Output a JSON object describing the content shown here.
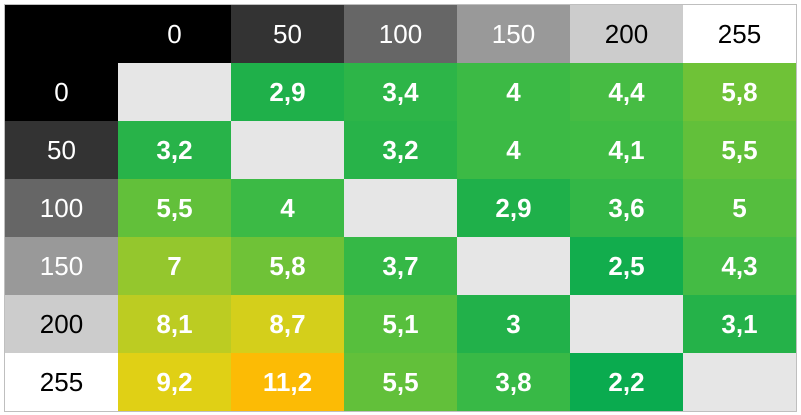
{
  "table": {
    "column_headers": [
      "0",
      "50",
      "100",
      "150",
      "200",
      "255"
    ],
    "row_headers": [
      "0",
      "50",
      "100",
      "150",
      "200",
      "255"
    ],
    "header_colors": [
      "#000000",
      "#333333",
      "#666666",
      "#999999",
      "#cccccc",
      "#ffffff"
    ],
    "header_text_colors": [
      "#ffffff",
      "#ffffff",
      "#ffffff",
      "#ffffff",
      "#000000",
      "#000000"
    ],
    "empty_color": "#e6e6e6",
    "rows": [
      [
        null,
        "2,9",
        "3,4",
        "4",
        "4,4",
        "5,8"
      ],
      [
        "3,2",
        null,
        "3,2",
        "4",
        "4,1",
        "5,5"
      ],
      [
        "5,5",
        "4",
        null,
        "2,9",
        "3,6",
        "5"
      ],
      [
        "7",
        "5,8",
        "3,7",
        null,
        "2,5",
        "4,3"
      ],
      [
        "8,1",
        "8,7",
        "5,1",
        "3",
        null,
        "3,1"
      ],
      [
        "9,2",
        "11,2",
        "5,5",
        "3,8",
        "2,2",
        null
      ]
    ],
    "cell_colors": [
      [
        "#e6e6e6",
        "#1fb04a",
        "#2db548",
        "#3cba45",
        "#46bc43",
        "#6fc237"
      ],
      [
        "#28b349",
        "#e6e6e6",
        "#28b349",
        "#3cba45",
        "#3fbb44",
        "#62c03a"
      ],
      [
        "#62c03a",
        "#3cba45",
        "#e6e6e6",
        "#1fb04a",
        "#33b747",
        "#55be3e"
      ],
      [
        "#94c72d",
        "#6fc237",
        "#35b846",
        "#e6e6e6",
        "#12ad4d",
        "#44bb44"
      ],
      [
        "#bccc22",
        "#d4cf1b",
        "#57bf3d",
        "#22b14a",
        "#e6e6e6",
        "#25b249"
      ],
      [
        "#e0d015",
        "#fcbb05",
        "#62c03a",
        "#38b946",
        "#0aab4f",
        "#e6e6e6"
      ]
    ]
  }
}
